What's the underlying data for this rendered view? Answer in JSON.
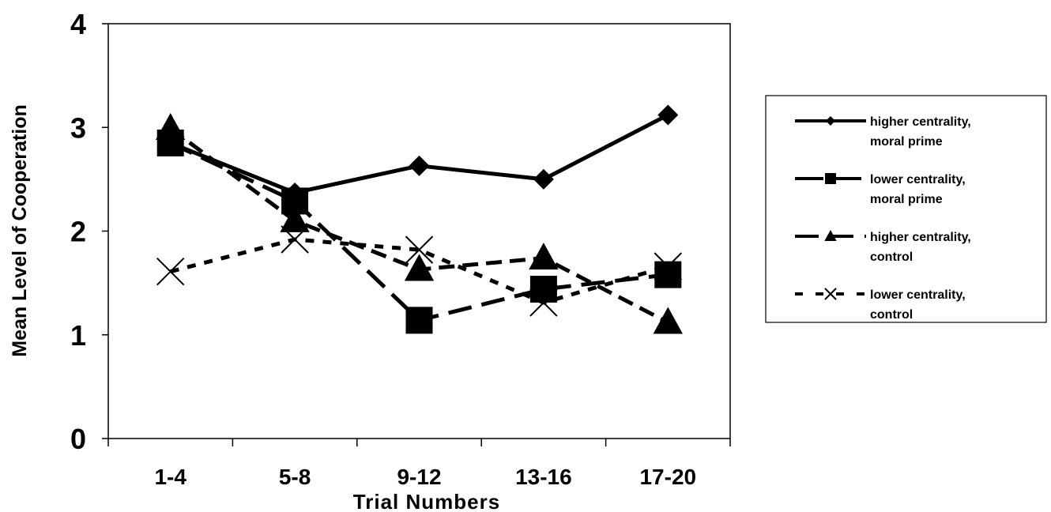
{
  "chart_data": {
    "type": "line",
    "title": "",
    "xlabel": "Trial Numbers",
    "ylabel": "Mean Level of Cooperation",
    "categories": [
      "1-4",
      "5-8",
      "9-12",
      "13-16",
      "17-20"
    ],
    "ylim": [
      0,
      4
    ],
    "yticks": [
      "0",
      "1",
      "2",
      "3",
      "4"
    ],
    "grid": false,
    "legend_position": "right",
    "series": [
      {
        "name_line1": "higher centrality,",
        "name_line2": "moral prime",
        "values": [
          2.85,
          2.37,
          2.63,
          2.5,
          3.12
        ],
        "marker": "diamond",
        "line_style": "solid",
        "color": "#000000"
      },
      {
        "name_line1": "lower centrality,",
        "name_line2": "moral prime",
        "values": [
          2.85,
          2.29,
          1.14,
          1.44,
          1.58
        ],
        "marker": "square",
        "line_style": "long-dash",
        "color": "#000000"
      },
      {
        "name_line1": "higher centrality,",
        "name_line2": "control",
        "values": [
          2.99,
          2.1,
          1.63,
          1.74,
          1.12
        ],
        "marker": "triangle",
        "line_style": "dash",
        "color": "#000000"
      },
      {
        "name_line1": "lower centrality,",
        "name_line2": "control",
        "values": [
          1.61,
          1.92,
          1.82,
          1.31,
          1.66
        ],
        "marker": "x",
        "line_style": "short-dash",
        "color": "#000000"
      }
    ]
  }
}
